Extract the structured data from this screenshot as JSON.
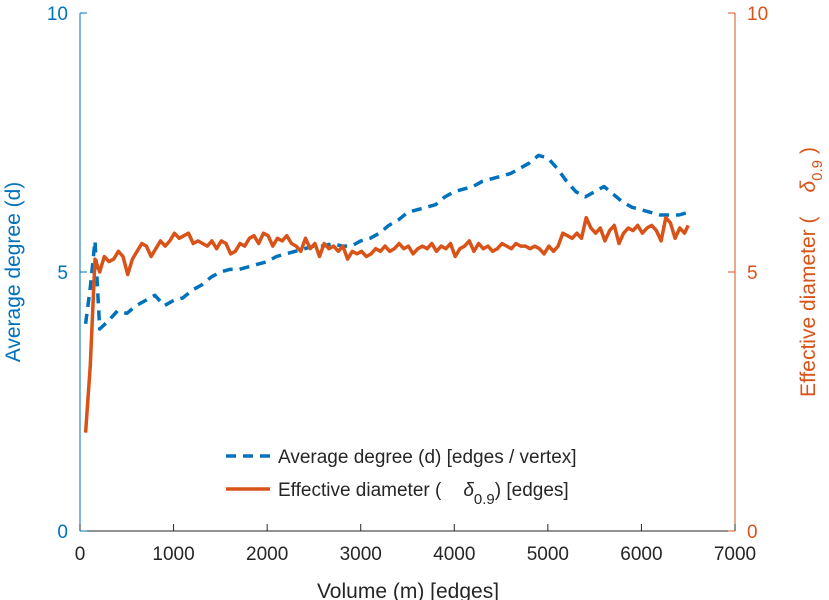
{
  "chart_data": {
    "type": "line",
    "title": "",
    "xlabel": "Volume (m) [edges]",
    "ylabel_left": "Average degree (d)",
    "ylabel_right": "Effective diameter (δ0.9)",
    "ylabel_right_main": "Effective diameter (",
    "ylabel_right_sym": "δ",
    "ylabel_right_sub": "0.9",
    "ylabel_right_close": ")",
    "xlim": [
      0,
      7000
    ],
    "ylim_left": [
      0,
      10
    ],
    "ylim_right": [
      0,
      10
    ],
    "x_ticks": [
      0,
      1000,
      2000,
      3000,
      4000,
      5000,
      6000,
      7000
    ],
    "x_tick_labels": [
      "0",
      "1000",
      "2000",
      "3000",
      "4000",
      "5000",
      "6000",
      "7000"
    ],
    "y_left_ticks": [
      0,
      5,
      10
    ],
    "y_left_tick_labels": [
      "0",
      "5",
      "10"
    ],
    "y_right_ticks": [
      0,
      5,
      10
    ],
    "y_right_tick_labels": [
      "0",
      "5",
      "10"
    ],
    "grid": false,
    "legend_position": "bottom-center",
    "colors": {
      "left": "#0072BD",
      "right": "#D95319",
      "axis_text": "#262626"
    },
    "legend": {
      "average_degree": "Average degree (d) [edges / vertex]",
      "effective_main": "Effective diameter (",
      "effective_sym": "δ",
      "effective_sub": "0.9",
      "effective_end": ") [edges]"
    },
    "series": [
      {
        "name": "Average degree (d) [edges / vertex]",
        "axis": "left",
        "style": "dashed",
        "color": "#0072BD",
        "x": [
          60,
          110,
          160,
          210,
          300,
          400,
          500,
          600,
          700,
          800,
          900,
          1000,
          1100,
          1200,
          1300,
          1400,
          1500,
          1600,
          1700,
          1800,
          1900,
          2000,
          2100,
          2200,
          2300,
          2400,
          2500,
          2600,
          2700,
          2800,
          2900,
          3000,
          3100,
          3200,
          3300,
          3400,
          3500,
          3600,
          3700,
          3800,
          3900,
          4000,
          4100,
          4200,
          4300,
          4400,
          4500,
          4600,
          4700,
          4800,
          4900,
          5000,
          5100,
          5200,
          5300,
          5400,
          5500,
          5600,
          5700,
          5800,
          5900,
          6000,
          6100,
          6200,
          6300,
          6400,
          6500
        ],
        "values": [
          4.0,
          4.7,
          5.6,
          3.9,
          4.05,
          4.25,
          4.2,
          4.35,
          4.45,
          4.55,
          4.35,
          4.45,
          4.5,
          4.65,
          4.75,
          4.9,
          5.0,
          5.05,
          5.05,
          5.1,
          5.15,
          5.2,
          5.3,
          5.35,
          5.4,
          5.45,
          5.5,
          5.5,
          5.55,
          5.5,
          5.5,
          5.6,
          5.65,
          5.75,
          5.9,
          6.0,
          6.15,
          6.2,
          6.25,
          6.3,
          6.45,
          6.55,
          6.6,
          6.65,
          6.75,
          6.8,
          6.85,
          6.9,
          7.0,
          7.1,
          7.25,
          7.2,
          7.0,
          6.75,
          6.55,
          6.45,
          6.55,
          6.65,
          6.5,
          6.35,
          6.25,
          6.2,
          6.15,
          6.1,
          6.1,
          6.1,
          6.15
        ]
      },
      {
        "name": "Effective diameter (δ0.9) [edges]",
        "axis": "right",
        "style": "solid",
        "color": "#D95319",
        "x": [
          60,
          110,
          160,
          210,
          260,
          310,
          360,
          410,
          460,
          510,
          560,
          610,
          660,
          710,
          760,
          810,
          860,
          910,
          960,
          1010,
          1060,
          1110,
          1160,
          1210,
          1260,
          1310,
          1360,
          1410,
          1460,
          1510,
          1560,
          1610,
          1660,
          1710,
          1760,
          1810,
          1860,
          1910,
          1960,
          2010,
          2060,
          2110,
          2160,
          2210,
          2260,
          2310,
          2360,
          2410,
          2460,
          2510,
          2560,
          2610,
          2660,
          2710,
          2760,
          2810,
          2860,
          2910,
          2960,
          3010,
          3060,
          3110,
          3160,
          3210,
          3260,
          3310,
          3360,
          3410,
          3460,
          3510,
          3560,
          3610,
          3660,
          3710,
          3760,
          3810,
          3860,
          3910,
          3960,
          4010,
          4060,
          4110,
          4160,
          4210,
          4260,
          4310,
          4360,
          4410,
          4460,
          4510,
          4560,
          4610,
          4660,
          4710,
          4760,
          4810,
          4860,
          4910,
          4960,
          5010,
          5060,
          5110,
          5160,
          5210,
          5260,
          5310,
          5360,
          5410,
          5460,
          5510,
          5560,
          5610,
          5660,
          5710,
          5760,
          5810,
          5860,
          5910,
          5960,
          6010,
          6060,
          6110,
          6160,
          6210,
          6260,
          6310,
          6360,
          6410,
          6460,
          6500
        ],
        "values": [
          1.9,
          3.2,
          5.25,
          5.0,
          5.3,
          5.2,
          5.25,
          5.4,
          5.3,
          4.95,
          5.25,
          5.4,
          5.55,
          5.5,
          5.3,
          5.45,
          5.6,
          5.5,
          5.6,
          5.75,
          5.65,
          5.7,
          5.75,
          5.55,
          5.6,
          5.55,
          5.5,
          5.6,
          5.45,
          5.6,
          5.55,
          5.35,
          5.4,
          5.55,
          5.5,
          5.65,
          5.7,
          5.55,
          5.75,
          5.7,
          5.5,
          5.65,
          5.6,
          5.7,
          5.55,
          5.5,
          5.4,
          5.65,
          5.45,
          5.55,
          5.3,
          5.55,
          5.45,
          5.5,
          5.4,
          5.5,
          5.25,
          5.4,
          5.35,
          5.4,
          5.3,
          5.35,
          5.45,
          5.4,
          5.5,
          5.4,
          5.45,
          5.55,
          5.45,
          5.5,
          5.35,
          5.45,
          5.5,
          5.45,
          5.55,
          5.4,
          5.5,
          5.45,
          5.55,
          5.3,
          5.45,
          5.5,
          5.6,
          5.4,
          5.55,
          5.45,
          5.5,
          5.4,
          5.45,
          5.55,
          5.5,
          5.45,
          5.55,
          5.5,
          5.5,
          5.45,
          5.5,
          5.45,
          5.35,
          5.5,
          5.4,
          5.5,
          5.75,
          5.7,
          5.65,
          5.75,
          5.65,
          6.05,
          5.85,
          5.75,
          5.85,
          5.6,
          5.8,
          5.9,
          5.55,
          5.75,
          5.85,
          5.8,
          5.9,
          5.75,
          5.85,
          5.9,
          5.8,
          5.6,
          6.05,
          5.95,
          5.65,
          5.85,
          5.75,
          5.9
        ]
      }
    ]
  }
}
